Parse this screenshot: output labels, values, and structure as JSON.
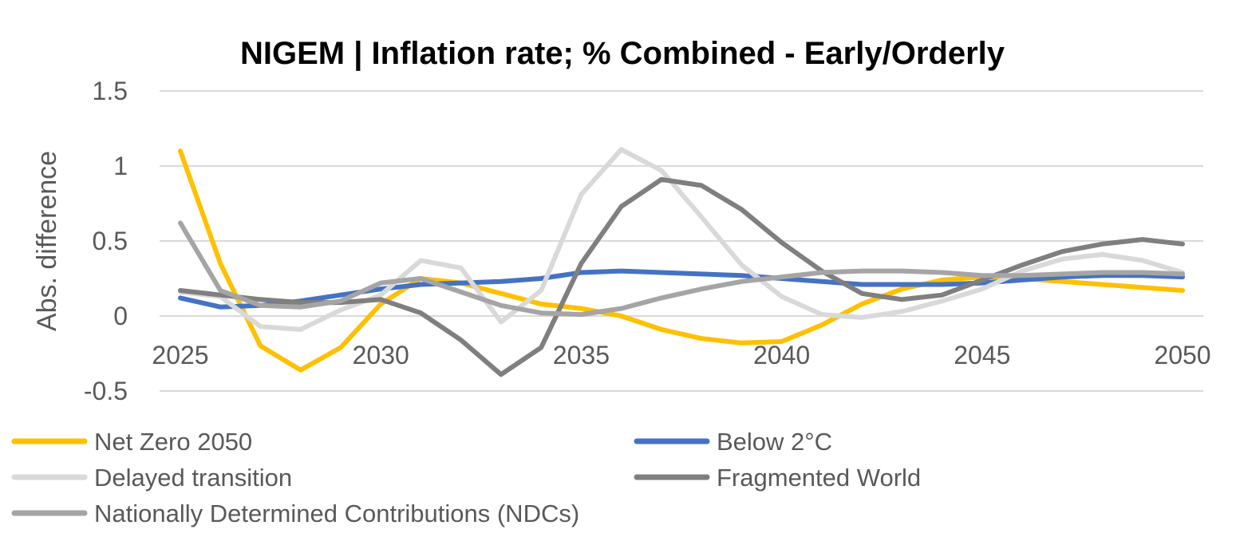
{
  "chart_data": {
    "type": "line",
    "title": "NIGEM | Inflation rate; % Combined - Early/Orderly",
    "ylabel": "Abs. difference",
    "xlabel": "",
    "x": [
      2025,
      2026,
      2027,
      2028,
      2029,
      2030,
      2031,
      2032,
      2033,
      2034,
      2035,
      2036,
      2037,
      2038,
      2039,
      2040,
      2041,
      2042,
      2043,
      2044,
      2045,
      2046,
      2047,
      2048,
      2049,
      2050
    ],
    "x_ticks": [
      "2025",
      "2030",
      "2035",
      "2040",
      "2045",
      "2050"
    ],
    "x_tick_values": [
      2025,
      2030,
      2035,
      2040,
      2045,
      2050
    ],
    "y_ticks": [
      "1.5",
      "1",
      "0.5",
      "0",
      "-0.5"
    ],
    "y_tick_values": [
      1.5,
      1,
      0.5,
      0,
      -0.5
    ],
    "ylim": [
      -0.5,
      1.5
    ],
    "grid": true,
    "legend_position": "bottom",
    "series": [
      {
        "name": "Net Zero 2050",
        "color": "#FFC000",
        "values": [
          1.1,
          0.35,
          -0.2,
          -0.36,
          -0.21,
          0.08,
          0.25,
          0.22,
          0.15,
          0.08,
          0.05,
          0.0,
          -0.09,
          -0.15,
          -0.18,
          -0.17,
          -0.06,
          0.08,
          0.18,
          0.24,
          0.26,
          0.25,
          0.23,
          0.21,
          0.19,
          0.17
        ]
      },
      {
        "name": "Below 2°C",
        "color": "#4472C4",
        "values": [
          0.12,
          0.06,
          0.07,
          0.1,
          0.14,
          0.18,
          0.21,
          0.22,
          0.23,
          0.25,
          0.29,
          0.3,
          0.29,
          0.28,
          0.27,
          0.25,
          0.23,
          0.21,
          0.21,
          0.21,
          0.22,
          0.24,
          0.26,
          0.27,
          0.27,
          0.26
        ]
      },
      {
        "name": "Delayed transition",
        "color": "#D9D9D9",
        "values": [
          0.16,
          0.13,
          -0.07,
          -0.09,
          0.04,
          0.14,
          0.37,
          0.32,
          -0.04,
          0.17,
          0.81,
          1.11,
          0.97,
          0.66,
          0.34,
          0.13,
          0.01,
          -0.01,
          0.03,
          0.1,
          0.18,
          0.3,
          0.38,
          0.41,
          0.37,
          0.29
        ]
      },
      {
        "name": "Fragmented World",
        "color": "#7F7F7F",
        "values": [
          0.17,
          0.14,
          0.11,
          0.09,
          0.09,
          0.11,
          0.02,
          -0.16,
          -0.39,
          -0.21,
          0.35,
          0.73,
          0.91,
          0.87,
          0.71,
          0.49,
          0.3,
          0.15,
          0.11,
          0.14,
          0.24,
          0.34,
          0.43,
          0.48,
          0.51,
          0.48
        ]
      },
      {
        "name": "Nationally Determined Contributions (NDCs)",
        "color": "#A5A5A5",
        "values": [
          0.62,
          0.17,
          0.07,
          0.06,
          0.1,
          0.22,
          0.25,
          0.16,
          0.07,
          0.02,
          0.01,
          0.05,
          0.12,
          0.18,
          0.23,
          0.26,
          0.29,
          0.3,
          0.3,
          0.29,
          0.27,
          0.27,
          0.28,
          0.29,
          0.29,
          0.28
        ]
      }
    ]
  }
}
